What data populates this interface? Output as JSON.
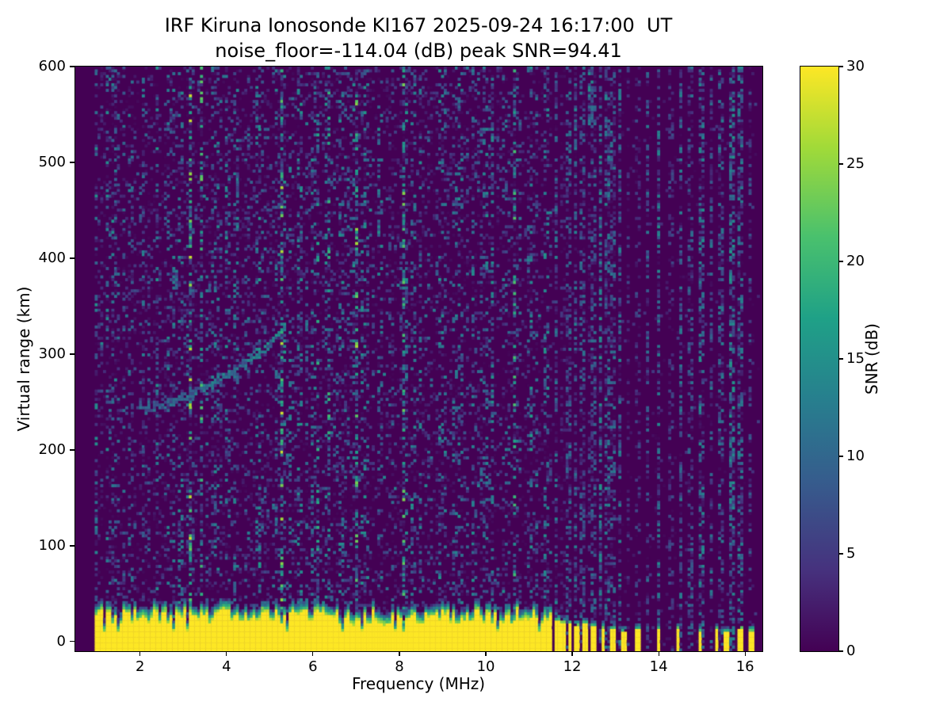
{
  "chart_data": {
    "type": "heatmap",
    "title": "IRF Kiruna Ionosonde KI167 2025-09-24 16:17:00  UT",
    "subtitle": "noise_floor=-114.04 (dB) peak SNR=94.41",
    "station": "IRF Kiruna Ionosonde KI167",
    "timestamp_ut": "2025-09-24 16:17:00",
    "noise_floor_db": -114.04,
    "peak_snr_db": 94.41,
    "xlabel": "Frequency (MHz)",
    "ylabel": "Virtual range (km)",
    "xlim": [
      0.5,
      16.4
    ],
    "ylim": [
      -10,
      600
    ],
    "xticks": [
      2,
      4,
      6,
      8,
      10,
      12,
      14,
      16
    ],
    "yticks": [
      0,
      100,
      200,
      300,
      400,
      500,
      600
    ],
    "grid": false,
    "colorbar": {
      "label": "SNR (dB)",
      "min": 0,
      "max": 30,
      "ticks": [
        0,
        5,
        10,
        15,
        20,
        25,
        30
      ],
      "colormap": "viridis",
      "position": "right"
    },
    "colormap_stops": [
      {
        "t": 0.0,
        "color": "#440154"
      },
      {
        "t": 0.14,
        "color": "#46327e"
      },
      {
        "t": 0.29,
        "color": "#365c8d"
      },
      {
        "t": 0.43,
        "color": "#277f8e"
      },
      {
        "t": 0.57,
        "color": "#1fa187"
      },
      {
        "t": 0.71,
        "color": "#4ac16d"
      },
      {
        "t": 0.86,
        "color": "#a0da39"
      },
      {
        "t": 1.0,
        "color": "#fde725"
      }
    ],
    "features": {
      "data_freq_range_mhz": [
        0.95,
        16.33
      ],
      "background_snr_db": 0,
      "ground_band": {
        "freq_min": 0.95,
        "freq_max": 11.55,
        "top_km_min": 17,
        "top_km_max": 33,
        "snr_db": 30
      },
      "ground_columns_mhz_heightkm": [
        [
          11.66,
          22
        ],
        [
          11.8,
          20
        ],
        [
          11.95,
          18
        ],
        [
          12.1,
          16
        ],
        [
          12.3,
          18
        ],
        [
          12.5,
          15
        ],
        [
          12.72,
          14
        ],
        [
          12.95,
          13
        ],
        [
          13.2,
          10
        ],
        [
          13.5,
          12
        ],
        [
          14.0,
          12
        ],
        [
          14.45,
          13
        ],
        [
          14.95,
          11
        ],
        [
          15.35,
          12
        ],
        [
          15.55,
          9
        ],
        [
          15.9,
          13
        ],
        [
          16.15,
          11
        ]
      ],
      "echo_trace": {
        "points_mhz_km": [
          [
            1.95,
            243
          ],
          [
            2.5,
            247
          ],
          [
            3.0,
            254
          ],
          [
            3.5,
            264
          ],
          [
            4.0,
            277
          ],
          [
            4.5,
            293
          ],
          [
            5.0,
            310
          ],
          [
            5.35,
            328
          ]
        ],
        "snr_db_range": [
          8,
          18
        ]
      },
      "secondary_trace": {
        "points_mhz_km": [
          [
            3.35,
            258
          ],
          [
            3.8,
            265
          ],
          [
            4.3,
            275
          ],
          [
            4.6,
            282
          ]
        ],
        "snr_db_range": [
          4,
          11
        ]
      },
      "sporadic_blob": {
        "freq_mhz": 2.8,
        "range_km": [
          368,
          392
        ],
        "snr_db_range": [
          5,
          14
        ]
      },
      "rfi_stripes_mhz": [
        11.62,
        11.78,
        11.92,
        12.08,
        12.22,
        12.38,
        12.5,
        12.65,
        12.8,
        12.95,
        13.1,
        13.3,
        13.5,
        13.75,
        14.0,
        14.3,
        14.5,
        14.75,
        15.0,
        15.2,
        15.45,
        15.7,
        15.9,
        16.1
      ],
      "top_stripe": {
        "freq_mhz": 12.4,
        "range_km": [
          535,
          600
        ]
      }
    }
  }
}
